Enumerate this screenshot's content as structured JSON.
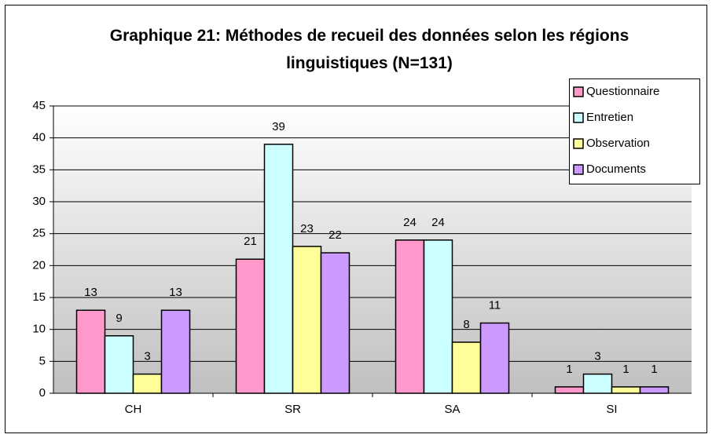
{
  "chart_data": {
    "type": "bar",
    "title": "Graphique 21: Méthodes de recueil des données selon les régions linguistiques (N=131)",
    "categories": [
      "CH",
      "SR",
      "SA",
      "SI"
    ],
    "series": [
      {
        "name": "Questionnaire",
        "color": "#ff99cc",
        "values": [
          13,
          21,
          24,
          1
        ]
      },
      {
        "name": "Entretien",
        "color": "#ccffff",
        "values": [
          9,
          39,
          24,
          3
        ]
      },
      {
        "name": "Observation",
        "color": "#ffff99",
        "values": [
          3,
          23,
          8,
          1
        ]
      },
      {
        "name": "Documents",
        "color": "#cc99ff",
        "values": [
          13,
          22,
          11,
          1
        ]
      }
    ],
    "ylim": [
      0,
      45
    ],
    "yticks": [
      0,
      5,
      10,
      15,
      20,
      25,
      30,
      35,
      40,
      45
    ],
    "grid": true,
    "legend": "top-right"
  }
}
